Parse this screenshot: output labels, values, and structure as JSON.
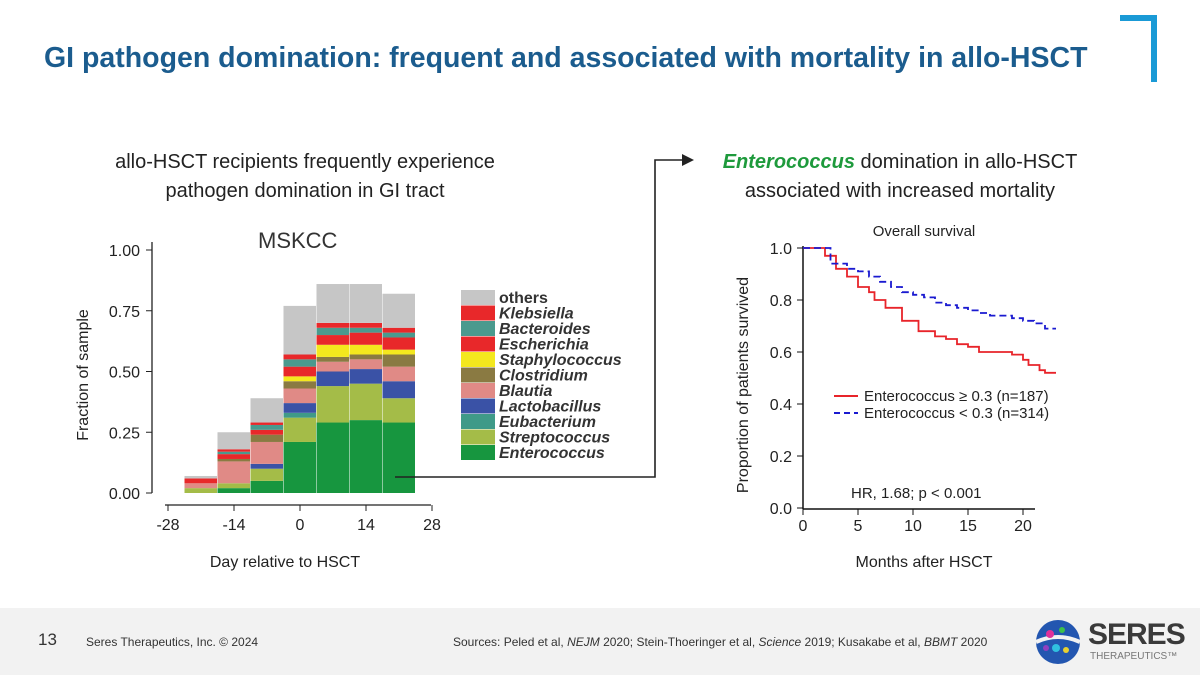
{
  "title": "GI pathogen domination: frequent and associated with mortality in allo-HSCT",
  "left_heading": [
    "allo-HSCT recipients frequently experience",
    "pathogen domination in GI tract"
  ],
  "right_heading": {
    "emph": "Enterococcus",
    "rest1": " domination in allo-HSCT",
    "line2": "associated with increased mortality"
  },
  "footer": {
    "page": "13",
    "company": "Seres Therapeutics, Inc. © 2024",
    "sources_prefix": "Sources:  Peled et al, ",
    "j1": "NEJM",
    "s1": " 2020; Stein-Thoeringer et al, ",
    "j2": "Science",
    "s2": " 2019; Kusakabe et al, ",
    "j3": "BBMT",
    "s3": " 2020",
    "logo_text": "SERES",
    "logo_sub": "THERAPEUTICS™"
  },
  "colors": {
    "title": "#1b5c8e",
    "accent_bracket": "#1a9ad6",
    "emph_green": "#1e9a3c",
    "red": "#e8242a",
    "blue": "#1a1ad0"
  },
  "chart_data": [
    {
      "type": "bar",
      "stacked": true,
      "title": "MSKCC",
      "xlabel": "Day relative to HSCT",
      "ylabel": "Fraction of sample",
      "xlim": [
        -28,
        28
      ],
      "ylim": [
        0,
        1
      ],
      "xticks": [
        "-28",
        "-14",
        "0",
        "14",
        "28"
      ],
      "yticks": [
        "0.00",
        "0.25",
        "0.50",
        "0.75",
        "1.00"
      ],
      "bin_width_days": 7,
      "x": [
        -21,
        -14,
        -7,
        0,
        7,
        14,
        21
      ],
      "legend_placement": "right",
      "series": [
        {
          "name": "Enterococcus",
          "color": "#17963f",
          "values": [
            0,
            0.02,
            0.05,
            0.21,
            0.29,
            0.3,
            0.29
          ]
        },
        {
          "name": "Streptococcus",
          "color": "#a4bc48",
          "values": [
            0.02,
            0.02,
            0.05,
            0.1,
            0.15,
            0.15,
            0.1
          ]
        },
        {
          "name": "Eubacterium",
          "color": "#3f9a88",
          "values": [
            0,
            0,
            0,
            0.02,
            0,
            0,
            0
          ]
        },
        {
          "name": "Lactobacillus",
          "color": "#3a52a6",
          "values": [
            0,
            0,
            0.02,
            0.04,
            0.06,
            0.06,
            0.07
          ]
        },
        {
          "name": "Blautia",
          "color": "#e08a86",
          "values": [
            0.02,
            0.09,
            0.09,
            0.06,
            0.04,
            0.04,
            0.06
          ]
        },
        {
          "name": "Clostridium",
          "color": "#8a7a42",
          "values": [
            0,
            0.01,
            0.03,
            0.03,
            0.02,
            0.02,
            0.05
          ]
        },
        {
          "name": "Staphylococcus",
          "color": "#f4e81e",
          "values": [
            0,
            0,
            0,
            0.02,
            0.05,
            0.04,
            0.02
          ]
        },
        {
          "name": "Escherichia",
          "color": "#e8282a",
          "values": [
            0.02,
            0.02,
            0.02,
            0.04,
            0.04,
            0.05,
            0.05
          ]
        },
        {
          "name": "Bacteroides",
          "color": "#4a9a8e",
          "values": [
            0,
            0.01,
            0.02,
            0.03,
            0.03,
            0.02,
            0.02
          ]
        },
        {
          "name": "Klebsiella",
          "color": "#e8282a",
          "values": [
            0,
            0.01,
            0.01,
            0.02,
            0.02,
            0.02,
            0.02
          ]
        },
        {
          "name": "others",
          "color": "#c6c6c6",
          "values": [
            0.01,
            0.07,
            0.1,
            0.2,
            0.16,
            0.16,
            0.14
          ]
        }
      ]
    },
    {
      "type": "line",
      "step": true,
      "title": "Overall survival",
      "xlabel": "Months after HSCT",
      "ylabel": "Proportion of patients survived",
      "xlim": [
        0,
        23
      ],
      "ylim": [
        0,
        1
      ],
      "xticks": [
        "0",
        "5",
        "10",
        "15",
        "20"
      ],
      "yticks": [
        "0.0",
        "0.2",
        "0.4",
        "0.6",
        "0.8",
        "1.0"
      ],
      "annotation": "HR, 1.68; p < 0.001",
      "legend_placement": "center-right",
      "series": [
        {
          "name": "Enterococcus ≥ 0.3 (n=187)",
          "color": "#e8242a",
          "style": "solid",
          "x": [
            0,
            1.5,
            2,
            3,
            4,
            5,
            6,
            6.5,
            7.5,
            9,
            10.5,
            12,
            13,
            14,
            15,
            16,
            17,
            19,
            20,
            20.5,
            21.5,
            22,
            23
          ],
          "y": [
            1,
            1,
            0.97,
            0.92,
            0.89,
            0.85,
            0.83,
            0.8,
            0.77,
            0.72,
            0.68,
            0.66,
            0.65,
            0.63,
            0.62,
            0.6,
            0.6,
            0.59,
            0.57,
            0.55,
            0.53,
            0.52,
            0.52
          ]
        },
        {
          "name": "Enterococcus < 0.3 (n=314)",
          "color": "#1a1ad0",
          "style": "dashed",
          "x": [
            0,
            1,
            2.5,
            4,
            5,
            6,
            7,
            8,
            9,
            10,
            11,
            12,
            13,
            14,
            15,
            16,
            17,
            18,
            19,
            20,
            21,
            22,
            23
          ],
          "y": [
            1,
            1,
            0.94,
            0.92,
            0.91,
            0.89,
            0.87,
            0.85,
            0.83,
            0.82,
            0.81,
            0.79,
            0.78,
            0.77,
            0.76,
            0.75,
            0.74,
            0.74,
            0.73,
            0.72,
            0.71,
            0.69,
            0.69
          ]
        }
      ]
    }
  ]
}
